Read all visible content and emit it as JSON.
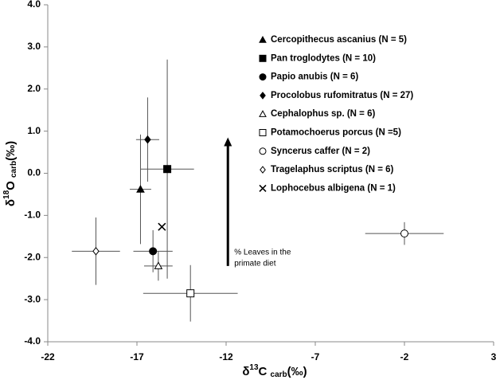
{
  "chart_data": {
    "type": "scatter",
    "x_label": {
      "prefix": "δ",
      "sup": "13",
      "main": "C ",
      "sub": "carb",
      "suffix": "(‰)"
    },
    "y_label": {
      "prefix": "δ",
      "sup": "18",
      "main": "O ",
      "sub": "carb",
      "suffix": "(‰)"
    },
    "xlim": [
      -22,
      3
    ],
    "xticks": [
      -22,
      -17,
      -12,
      -7,
      -2,
      3
    ],
    "ylim": [
      -4,
      4
    ],
    "yticks": [
      {
        "value": -4,
        "label": "-4.0"
      },
      {
        "value": -3,
        "label": "-3.0"
      },
      {
        "value": -2,
        "label": "-2.0"
      },
      {
        "value": -1,
        "label": "-1.0"
      },
      {
        "value": 0,
        "label": "0.0"
      },
      {
        "value": 1,
        "label": "1.0"
      },
      {
        "value": 2,
        "label": "2.0"
      },
      {
        "value": 3,
        "label": "3.0"
      },
      {
        "value": 4,
        "label": "4.0"
      }
    ],
    "grid": false,
    "legend": "upper right",
    "series": [
      {
        "name": "Cercopithecus ascanius (N = 5)",
        "marker": "triangle",
        "filled": true,
        "color": "#000000",
        "x": [
          -16.8
        ],
        "values": [
          -0.38
        ],
        "xerr": [
          0.6
        ],
        "yerr": [
          1.3
        ]
      },
      {
        "name": "Pan troglodytes (N = 10)",
        "marker": "square",
        "filled": true,
        "color": "#000000",
        "x": [
          -15.3
        ],
        "values": [
          0.1
        ],
        "xerr": [
          1.5
        ],
        "yerr": [
          2.6
        ]
      },
      {
        "name": "Papio anubis (N = 6)",
        "marker": "circle",
        "filled": true,
        "color": "#000000",
        "x": [
          -16.1
        ],
        "values": [
          -1.85
        ],
        "xerr": [
          1.1
        ],
        "yerr": [
          0.5
        ]
      },
      {
        "name": "Procolobus rufomitratus (N = 27)",
        "marker": "diamond",
        "filled": true,
        "color": "#000000",
        "x": [
          -16.4
        ],
        "values": [
          0.8
        ],
        "xerr": [
          0.65
        ],
        "yerr": [
          1.0
        ]
      },
      {
        "name": "Cephalophus sp. (N = 6)",
        "marker": "triangle",
        "filled": false,
        "color": "#000000",
        "x": [
          -15.8
        ],
        "values": [
          -2.2
        ],
        "xerr": [
          0.8
        ],
        "yerr": [
          0.35
        ]
      },
      {
        "name": "Potamochoerus porcus (N =5)",
        "marker": "square",
        "filled": false,
        "color": "#000000",
        "x": [
          -14.0
        ],
        "values": [
          -2.85
        ],
        "xerr": [
          2.65
        ],
        "yerr": [
          0.67
        ]
      },
      {
        "name": "Syncerus caffer (N = 2)",
        "marker": "circle",
        "filled": false,
        "color": "#000000",
        "x": [
          -2.0
        ],
        "values": [
          -1.43
        ],
        "xerr": [
          2.2
        ],
        "yerr": [
          0.27
        ]
      },
      {
        "name": "Tragelaphus scriptus (N = 6)",
        "marker": "diamond",
        "filled": false,
        "color": "#000000",
        "x": [
          -19.3
        ],
        "values": [
          -1.85
        ],
        "xerr": [
          1.35
        ],
        "yerr": [
          0.8
        ]
      },
      {
        "name": "Lophocebus albigena (N = 1)",
        "marker": "x",
        "filled": true,
        "color": "#000000",
        "x": [
          -15.6
        ],
        "values": [
          -1.27
        ]
      }
    ],
    "annotation": {
      "lines": [
        "% Leaves in the",
        "primate diet"
      ],
      "arrow_x": -11.9,
      "arrow_from": -2.2,
      "arrow_to": 0.85
    }
  }
}
